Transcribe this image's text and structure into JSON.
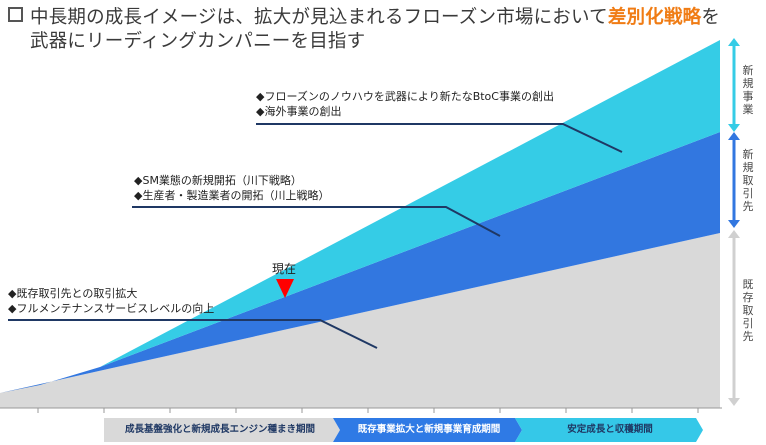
{
  "title": {
    "part1": "中長期の成長イメージは、拡大が見込まれるフローズン市場において",
    "highlight": "差別化戦略",
    "part2": "を",
    "line2": "武器にリーディングカンパニーを目指す"
  },
  "annotations": {
    "new_business": [
      "◆フローズンのノウハウを武器により新たなBtoC事業の創出",
      "◆海外事業の創出"
    ],
    "new_customers": [
      "◆SM業態の新規開拓（川下戦略）",
      "◆生産者・製造業者の開拓（川上戦略）"
    ],
    "existing": [
      "◆既存取引先との取引拡大",
      "◆フルメンテナンスサービスレベルの向上"
    ]
  },
  "now_label": "現在",
  "side_labels": {
    "new_business": "新規事業",
    "new_customers": "新規取引先",
    "existing": "既存取引先"
  },
  "phases": [
    {
      "label": "成長基盤強化と新規成長エンジン種まき期間",
      "bg": "#d9d9d9",
      "fg": "#1f3864"
    },
    {
      "label": "既存事業拡大と新規事業育成期間",
      "bg": "#2f7ae5",
      "fg": "#ffffff"
    },
    {
      "label": "安定成長と収穫期間",
      "bg": "#35c8e8",
      "fg": "#1f3864"
    }
  ],
  "colors": {
    "existing": "#d9d9d9",
    "new_customers": "#3277e0",
    "new_business": "#35cce6",
    "accent": "#f07c14",
    "now_marker": "#ff0000",
    "leader_line": "#1f3864"
  }
}
